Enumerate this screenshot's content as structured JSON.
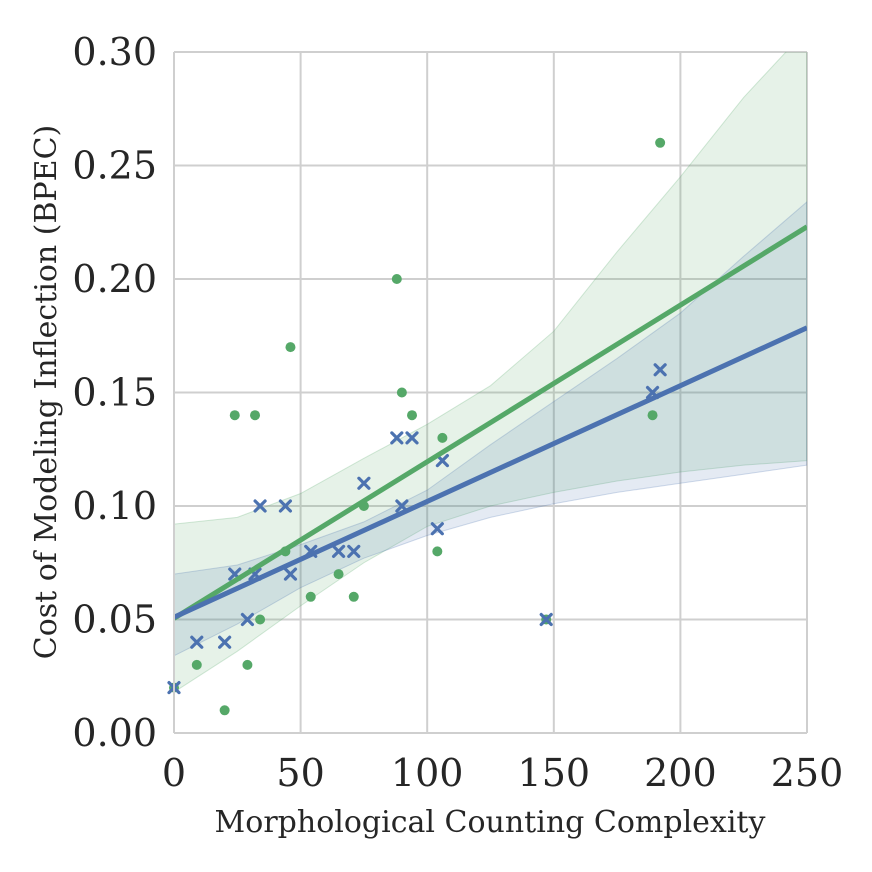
{
  "chart_data": {
    "type": "scatter",
    "title": "",
    "xlabel": "Morphological Counting Complexity",
    "ylabel": "Cost of Modeling Inflection (BPEC)",
    "xlim": [
      0,
      250
    ],
    "ylim": [
      0,
      0.3
    ],
    "xticks": [
      0,
      50,
      100,
      150,
      200,
      250
    ],
    "xtick_labels": [
      "0",
      "50",
      "100",
      "150",
      "200",
      "250"
    ],
    "yticks": [
      0,
      0.05,
      0.1,
      0.15,
      0.2,
      0.25,
      0.3
    ],
    "ytick_labels": [
      "0.00",
      "0.05",
      "0.10",
      "0.15",
      "0.20",
      "0.25",
      "0.30"
    ],
    "grid": true,
    "legend": "none",
    "series": [
      {
        "name": "circles",
        "color": "#55a868",
        "marker": "circle",
        "x": [
          0,
          9,
          20,
          24,
          29,
          32,
          34,
          44,
          46,
          54,
          65,
          71,
          75,
          88,
          90,
          94,
          104,
          106,
          147,
          189,
          192
        ],
        "y": [
          0.02,
          0.03,
          0.01,
          0.14,
          0.03,
          0.14,
          0.05,
          0.08,
          0.17,
          0.06,
          0.07,
          0.06,
          0.1,
          0.2,
          0.15,
          0.14,
          0.08,
          0.13,
          0.05,
          0.14,
          0.26
        ],
        "regression": {
          "intercept": 0.0505,
          "slope": 0.00069
        },
        "ci_upper": {
          "x": [
            0,
            25,
            50,
            75,
            100,
            125,
            150,
            175,
            200,
            225,
            250
          ],
          "y": [
            0.092,
            0.095,
            0.1055,
            0.121,
            0.136,
            0.153,
            0.177,
            0.212,
            0.245,
            0.28,
            0.31
          ]
        },
        "ci_lower": {
          "x": [
            0,
            25,
            50,
            75,
            100,
            125,
            150,
            175,
            200,
            225,
            250
          ],
          "y": [
            0.018,
            0.036,
            0.056,
            0.075,
            0.091,
            0.1,
            0.106,
            0.111,
            0.115,
            0.118,
            0.12
          ]
        }
      },
      {
        "name": "crosses",
        "color": "#4c72b0",
        "marker": "x",
        "x": [
          0,
          9,
          20,
          24,
          29,
          32,
          34,
          44,
          46,
          54,
          65,
          71,
          75,
          88,
          90,
          94,
          104,
          106,
          147,
          189,
          192
        ],
        "y": [
          0.02,
          0.04,
          0.04,
          0.07,
          0.05,
          0.07,
          0.1,
          0.1,
          0.07,
          0.08,
          0.08,
          0.08,
          0.11,
          0.13,
          0.1,
          0.13,
          0.09,
          0.12,
          0.05,
          0.15,
          0.16
        ],
        "regression": {
          "intercept": 0.051,
          "slope": 0.00051
        },
        "ci_upper": {
          "x": [
            0,
            25,
            50,
            75,
            100,
            125,
            150,
            175,
            200,
            225,
            250
          ],
          "y": [
            0.07,
            0.074,
            0.083,
            0.093,
            0.107,
            0.127,
            0.146,
            0.165,
            0.185,
            0.21,
            0.234
          ]
        },
        "ci_lower": {
          "x": [
            0,
            25,
            50,
            75,
            100,
            125,
            150,
            175,
            200,
            225,
            250
          ],
          "y": [
            0.034,
            0.048,
            0.064,
            0.077,
            0.087,
            0.095,
            0.101,
            0.106,
            0.11,
            0.114,
            0.118
          ]
        }
      }
    ]
  }
}
